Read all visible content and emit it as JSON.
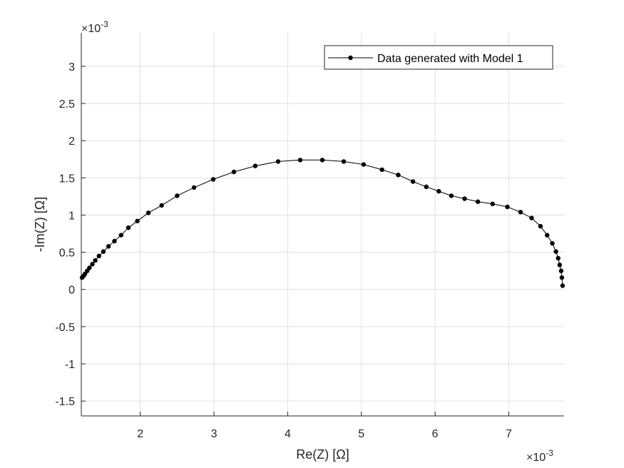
{
  "chart_data": {
    "type": "line",
    "xlabel": "Re(Z) [Ω]",
    "ylabel": "-Im(Z) [Ω]",
    "x_exponent_base": "×10",
    "x_exponent_power": "-3",
    "y_exponent_base": "×10",
    "y_exponent_power": "-3",
    "xlim": [
      1.2,
      7.75
    ],
    "ylim": [
      -1.7,
      3.45
    ],
    "x_ticks": [
      2,
      3,
      4,
      5,
      6,
      7
    ],
    "x_tick_labels": [
      "2",
      "3",
      "4",
      "5",
      "6",
      "7"
    ],
    "y_ticks": [
      -1.5,
      -1,
      -0.5,
      0,
      0.5,
      1,
      1.5,
      2,
      2.5,
      3
    ],
    "y_tick_labels": [
      "-1.5",
      "-1",
      "-0.5",
      "0",
      "0.5",
      "1",
      "1.5",
      "2",
      "2.5",
      "3"
    ],
    "grid": true,
    "legend_position": "top-right",
    "series": [
      {
        "name": "Data generated with Model 1",
        "color": "#000000",
        "marker": "filled-circle",
        "x": [
          1.21,
          1.23,
          1.25,
          1.28,
          1.31,
          1.35,
          1.39,
          1.44,
          1.5,
          1.57,
          1.65,
          1.74,
          1.84,
          1.96,
          2.11,
          2.29,
          2.5,
          2.73,
          2.99,
          3.27,
          3.56,
          3.87,
          4.17,
          4.47,
          4.76,
          5.03,
          5.28,
          5.5,
          5.7,
          5.88,
          6.05,
          6.22,
          6.4,
          6.58,
          6.78,
          6.98,
          7.16,
          7.31,
          7.43,
          7.52,
          7.59,
          7.64,
          7.67,
          7.69,
          7.71,
          7.72,
          7.73
        ],
        "y": [
          0.16,
          0.18,
          0.21,
          0.25,
          0.29,
          0.34,
          0.39,
          0.45,
          0.51,
          0.58,
          0.65,
          0.73,
          0.83,
          0.92,
          1.03,
          1.13,
          1.26,
          1.37,
          1.48,
          1.58,
          1.66,
          1.72,
          1.74,
          1.74,
          1.72,
          1.68,
          1.61,
          1.54,
          1.45,
          1.38,
          1.32,
          1.26,
          1.22,
          1.18,
          1.15,
          1.11,
          1.04,
          0.96,
          0.85,
          0.73,
          0.62,
          0.51,
          0.42,
          0.33,
          0.25,
          0.16,
          0.05
        ]
      }
    ]
  }
}
